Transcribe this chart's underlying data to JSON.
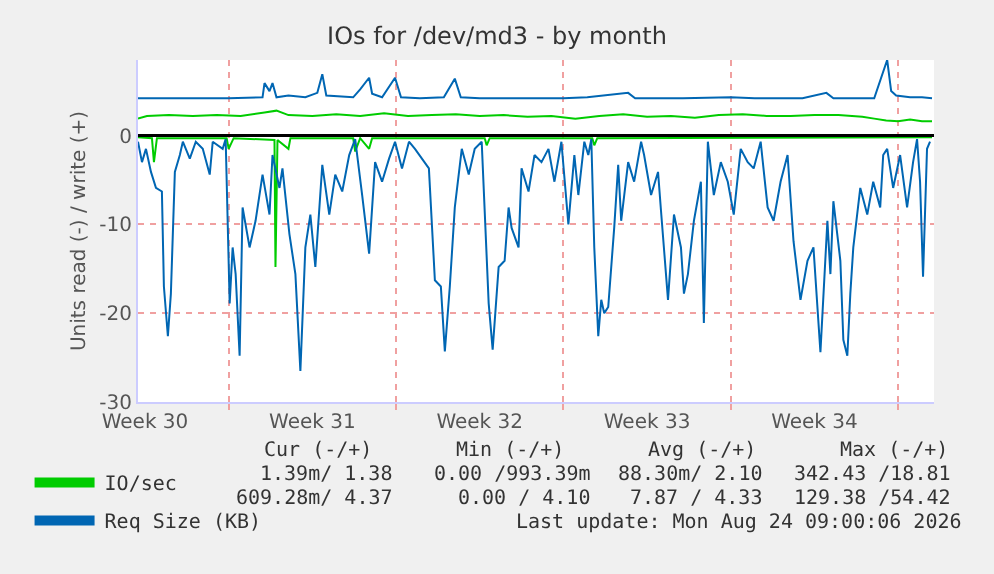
{
  "chart_data": {
    "type": "line",
    "title": "IOs for /dev/md3 - by month",
    "ylabel": "Units read (-) / write (+)",
    "xlim": [
      "2026-07-23T05:00",
      "2026-08-25T12:00"
    ],
    "xticks": [
      {
        "value": "2026-07-23T12:00",
        "label": "Week 30"
      },
      {
        "value": "2026-07-27",
        "label": null
      },
      {
        "value": "2026-07-30T12:00",
        "label": "Week 31"
      },
      {
        "value": "2026-08-03",
        "label": null
      },
      {
        "value": "2026-08-06T12:00",
        "label": "Week 32"
      },
      {
        "value": "2026-08-10",
        "label": null
      },
      {
        "value": "2026-08-13T12:00",
        "label": "Week 33"
      },
      {
        "value": "2026-08-17",
        "label": null
      },
      {
        "value": "2026-08-20T12:00",
        "label": "Week 34"
      },
      {
        "value": "2026-08-24",
        "label": null
      }
    ],
    "ylim": [
      -30,
      8.5
    ],
    "yticks": [
      -30,
      -20,
      -10,
      0
    ],
    "grid": true,
    "legend": "bottom left",
    "marker": "none",
    "line_style": "solid",
    "ref_lines": [
      {
        "axis": "y",
        "value": 0,
        "color": "#000000"
      }
    ],
    "series": [
      {
        "color": "#00cc00",
        "x": [
          "2026-07-23T05:00",
          "2026-07-23T19:00",
          "2026-07-23T21:00",
          "2026-07-24T00:00",
          "2026-07-26T22:00",
          "2026-07-27T00:00",
          "2026-07-27T05:00",
          "2026-07-28T22:00",
          "2026-07-28T23:00",
          "2026-07-29T01:00",
          "2026-07-29T12:00",
          "2026-07-29T14:00",
          "2026-08-01T05:00",
          "2026-08-01T07:00",
          "2026-08-01T12:00",
          "2026-08-01T21:00",
          "2026-08-02T00:00",
          "2026-08-05T00:00",
          "2026-08-06T17:00",
          "2026-08-06T19:00",
          "2026-08-06T22:00",
          "2026-08-11T05:00",
          "2026-08-11T07:00",
          "2026-08-11T10:00",
          "2026-08-25T10:00"
        ],
        "values": [
          -0.2,
          -0.3,
          -3.0,
          -0.3,
          -0.3,
          -1.5,
          -0.3,
          -0.5,
          -14.8,
          -0.5,
          -1.5,
          -0.3,
          -0.3,
          -1.8,
          -0.3,
          -1.5,
          -0.3,
          -0.3,
          -0.3,
          -1.1,
          -0.3,
          -0.3,
          -1.1,
          -0.3,
          -0.2
        ]
      },
      {
        "name": "IO/sec",
        "color": "#00cc00",
        "x": [
          "2026-07-23T05:00",
          "2026-07-23T14:00",
          "2026-07-24T12:00",
          "2026-07-25T12:00",
          "2026-07-26T12:00",
          "2026-07-27T12:00",
          "2026-07-28T12:00",
          "2026-07-29T00:00",
          "2026-07-29T12:00",
          "2026-07-30T12:00",
          "2026-07-31T12:00",
          "2026-08-01T12:00",
          "2026-08-02T12:00",
          "2026-08-03T12:00",
          "2026-08-04T12:00",
          "2026-08-05T12:00",
          "2026-08-06T12:00",
          "2026-08-07T12:00",
          "2026-08-08T12:00",
          "2026-08-09T12:00",
          "2026-08-10T12:00",
          "2026-08-11T12:00",
          "2026-08-12T12:00",
          "2026-08-13T12:00",
          "2026-08-14T12:00",
          "2026-08-15T12:00",
          "2026-08-16T12:00",
          "2026-08-17T12:00",
          "2026-08-18T12:00",
          "2026-08-19T12:00",
          "2026-08-20T12:00",
          "2026-08-21T12:00",
          "2026-08-22T12:00",
          "2026-08-23T00:00",
          "2026-08-23T12:00",
          "2026-08-24T00:00",
          "2026-08-24T12:00",
          "2026-08-25T00:00",
          "2026-08-25T10:00"
        ],
        "values": [
          1.9,
          2.2,
          2.3,
          2.2,
          2.3,
          2.2,
          2.6,
          2.8,
          2.3,
          2.2,
          2.4,
          2.2,
          2.5,
          2.2,
          2.3,
          2.4,
          2.2,
          2.3,
          2.1,
          2.2,
          1.9,
          2.2,
          2.4,
          2.1,
          2.2,
          2.0,
          2.3,
          2.4,
          2.2,
          2.2,
          2.3,
          2.3,
          2.1,
          1.9,
          1.7,
          1.6,
          1.8,
          1.6,
          1.6
        ]
      },
      {
        "color": "#0066b3",
        "x": [
          "2026-07-23T05:00",
          "2026-07-23T09:00",
          "2026-07-23T13:00",
          "2026-07-23T18:00",
          "2026-07-23T23:00",
          "2026-07-24T05:00",
          "2026-07-24T07:00",
          "2026-07-24T11:00",
          "2026-07-24T14:00",
          "2026-07-24T18:00",
          "2026-07-24T23:00",
          "2026-07-25T02:00",
          "2026-07-25T09:00",
          "2026-07-25T15:00",
          "2026-07-25T22:00",
          "2026-07-26T05:00",
          "2026-07-26T08:00",
          "2026-07-26T18:00",
          "2026-07-26T21:00",
          "2026-07-27T01:00",
          "2026-07-27T04:00",
          "2026-07-27T07:00",
          "2026-07-27T11:00",
          "2026-07-27T14:00",
          "2026-07-27T21:00",
          "2026-07-28T03:00",
          "2026-07-28T10:00",
          "2026-07-28T17:00",
          "2026-07-28T20:00",
          "2026-07-29T03:00",
          "2026-07-29T06:00",
          "2026-07-29T13:00",
          "2026-07-29T19:00",
          "2026-07-30T00:00",
          "2026-07-30T05:00",
          "2026-07-30T10:00",
          "2026-07-30T15:00",
          "2026-07-30T22:00",
          "2026-07-31T05:00",
          "2026-07-31T11:00",
          "2026-07-31T18:00",
          "2026-08-01T01:00",
          "2026-08-01T07:00",
          "2026-08-01T14:00",
          "2026-08-01T21:00",
          "2026-08-02T03:00",
          "2026-08-02T10:00",
          "2026-08-02T17:00",
          "2026-08-02T23:00",
          "2026-08-03T06:00",
          "2026-08-03T13:00",
          "2026-08-03T19:00",
          "2026-08-04T09:00",
          "2026-08-04T15:00",
          "2026-08-04T21:00",
          "2026-08-05T01:00",
          "2026-08-05T06:00",
          "2026-08-05T11:00",
          "2026-08-05T18:00",
          "2026-08-06T01:00",
          "2026-08-06T07:00",
          "2026-08-06T14:00",
          "2026-08-06T21:00",
          "2026-08-07T01:00",
          "2026-08-07T07:00",
          "2026-08-07T13:00",
          "2026-08-07T17:00",
          "2026-08-07T20:00",
          "2026-08-08T03:00",
          "2026-08-08T06:00",
          "2026-08-08T13:00",
          "2026-08-08T19:00",
          "2026-08-09T02:00",
          "2026-08-09T09:00",
          "2026-08-09T15:00",
          "2026-08-09T22:00",
          "2026-08-10T05:00",
          "2026-08-10T11:00",
          "2026-08-10T15:00",
          "2026-08-10T21:00",
          "2026-08-11T01:00",
          "2026-08-11T04:00",
          "2026-08-11T07:00",
          "2026-08-11T11:00",
          "2026-08-11T14:00",
          "2026-08-11T17:00",
          "2026-08-11T21:00",
          "2026-08-12T03:00",
          "2026-08-12T07:00",
          "2026-08-12T10:00",
          "2026-08-12T17:00",
          "2026-08-12T23:00",
          "2026-08-13T06:00",
          "2026-08-13T09:00",
          "2026-08-13T16:00",
          "2026-08-13T23:00",
          "2026-08-14T02:00",
          "2026-08-14T09:00",
          "2026-08-14T15:00",
          "2026-08-14T22:00",
          "2026-08-15T01:00",
          "2026-08-15T05:00",
          "2026-08-15T11:00",
          "2026-08-15T18:00",
          "2026-08-15T21:00",
          "2026-08-16T01:00",
          "2026-08-16T07:00",
          "2026-08-16T14:00",
          "2026-08-16T21:00",
          "2026-08-17T03:00",
          "2026-08-17T10:00",
          "2026-08-17T17:00",
          "2026-08-17T23:00",
          "2026-08-18T06:00",
          "2026-08-18T13:00",
          "2026-08-18T19:00",
          "2026-08-19T02:00",
          "2026-08-19T09:00",
          "2026-08-19T15:00",
          "2026-08-19T22:00",
          "2026-08-20T05:00",
          "2026-08-20T11:00",
          "2026-08-20T18:00",
          "2026-08-21T01:00",
          "2026-08-21T04:00",
          "2026-08-21T07:00",
          "2026-08-21T14:00",
          "2026-08-21T17:00",
          "2026-08-21T21:00",
          "2026-08-22T00:00",
          "2026-08-22T03:00",
          "2026-08-22T10:00",
          "2026-08-22T17:00",
          "2026-08-22T23:00",
          "2026-08-23T06:00",
          "2026-08-23T09:00",
          "2026-08-23T13:00",
          "2026-08-23T19:00",
          "2026-08-24T02:00",
          "2026-08-24T09:00",
          "2026-08-24T15:00",
          "2026-08-24T19:00",
          "2026-08-24T22:00",
          "2026-08-25T01:00",
          "2026-08-25T05:00",
          "2026-08-25T08:00"
        ],
        "values": [
          -0.7,
          -3.0,
          -1.5,
          -4.1,
          -5.9,
          -6.3,
          -17.0,
          -22.6,
          -17.8,
          -4.1,
          -2.2,
          -0.7,
          -2.6,
          -0.7,
          -1.5,
          -4.4,
          -0.7,
          -1.5,
          -0.4,
          -18.9,
          -12.6,
          -15.6,
          -24.8,
          -8.1,
          -12.6,
          -9.6,
          -4.4,
          -8.9,
          -2.2,
          -5.9,
          -3.7,
          -11.1,
          -15.6,
          -26.5,
          -12.6,
          -8.9,
          -14.8,
          -3.3,
          -8.9,
          -4.4,
          -6.3,
          -2.2,
          -0.4,
          -6.7,
          -13.3,
          -3.0,
          -5.2,
          -2.6,
          -0.7,
          -3.7,
          -0.7,
          -1.5,
          -3.7,
          -16.3,
          -17.0,
          -24.3,
          -17.0,
          -8.1,
          -1.5,
          -4.4,
          -1.5,
          -0.7,
          -18.9,
          -24.1,
          -14.8,
          -14.1,
          -8.1,
          -10.4,
          -12.6,
          -3.7,
          -6.3,
          -2.2,
          -3.0,
          -1.5,
          -5.2,
          -0.7,
          -10.0,
          -2.2,
          -6.7,
          -0.7,
          -2.2,
          -0.4,
          -12.6,
          -22.6,
          -18.5,
          -20.0,
          -19.3,
          -10.4,
          -3.3,
          -9.6,
          -3.0,
          -5.2,
          -0.7,
          -2.2,
          -6.7,
          -4.1,
          -8.5,
          -18.5,
          -8.9,
          -12.6,
          -17.8,
          -15.6,
          -9.6,
          -5.2,
          -21.1,
          -0.7,
          -6.7,
          -3.0,
          -5.2,
          -8.9,
          -1.5,
          -3.0,
          -3.7,
          -0.7,
          -8.1,
          -9.6,
          -5.2,
          -2.2,
          -11.9,
          -18.5,
          -14.1,
          -12.6,
          -24.4,
          -9.6,
          -15.6,
          -7.4,
          -14.1,
          -23.0,
          -24.8,
          -17.8,
          -12.6,
          -5.9,
          -8.9,
          -5.2,
          -8.1,
          -2.2,
          -1.5,
          -5.9,
          -2.2,
          -8.1,
          -3.0,
          -0.4,
          -5.2,
          -15.9,
          -1.5,
          -0.7
        ]
      },
      {
        "name": "Req Size (KB)",
        "color": "#0066b3",
        "x": [
          "2026-07-23T05:00",
          "2026-07-25T00:00",
          "2026-07-27T00:00",
          "2026-07-28T10:00",
          "2026-07-28T12:00",
          "2026-07-28T17:00",
          "2026-07-28T20:00",
          "2026-07-29T00:00",
          "2026-07-29T12:00",
          "2026-07-30T05:00",
          "2026-07-30T17:00",
          "2026-07-30T22:00",
          "2026-07-31T02:00",
          "2026-08-01T05:00",
          "2026-08-01T12:00",
          "2026-08-01T21:00",
          "2026-08-02T00:00",
          "2026-08-02T10:00",
          "2026-08-02T23:00",
          "2026-08-03T05:00",
          "2026-08-04T00:00",
          "2026-08-05T00:00",
          "2026-08-05T11:00",
          "2026-08-05T17:00",
          "2026-08-06T12:00",
          "2026-08-08T00:00",
          "2026-08-10T00:00",
          "2026-08-11T00:00",
          "2026-08-12T17:00",
          "2026-08-13T00:00",
          "2026-08-15T00:00",
          "2026-08-17T00:00",
          "2026-08-18T00:00",
          "2026-08-20T00:00",
          "2026-08-21T00:00",
          "2026-08-21T07:00",
          "2026-08-23T00:00",
          "2026-08-23T13:00",
          "2026-08-23T17:00",
          "2026-08-23T22:00",
          "2026-08-24T12:00",
          "2026-08-25T00:00",
          "2026-08-25T10:00"
        ],
        "values": [
          4.2,
          4.2,
          4.2,
          4.3,
          5.9,
          5.0,
          5.9,
          4.3,
          4.5,
          4.3,
          4.8,
          6.9,
          4.5,
          4.3,
          5.2,
          6.5,
          4.7,
          4.3,
          6.5,
          4.3,
          4.2,
          4.3,
          6.4,
          4.3,
          4.2,
          4.2,
          4.2,
          4.3,
          4.8,
          4.2,
          4.2,
          4.3,
          4.2,
          4.2,
          4.8,
          4.2,
          4.2,
          8.5,
          5.0,
          4.5,
          4.3,
          4.3,
          4.2
        ]
      }
    ],
    "annotations": [
      "Cur (-/+)",
      "Min (-/+)",
      "Avg (-/+)",
      "Max (-/+)",
      "1.39m/ 1.38",
      "0.00 /993.39m",
      "88.30m/ 2.10",
      "342.43 /18.81",
      "609.28m/ 4.37",
      "0.00 / 4.10",
      "7.87 / 4.33",
      "129.38 /54.42",
      "Last update: Mon Aug 24 09:00:06 2026"
    ]
  }
}
